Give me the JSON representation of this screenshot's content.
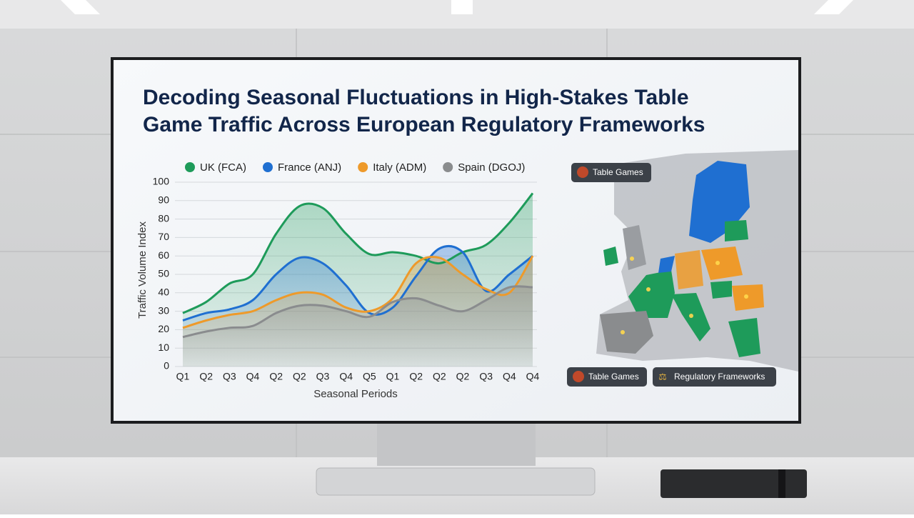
{
  "chart_data": {
    "type": "line",
    "title": "Decoding Seasonal Fluctuations in High-Stakes Table Game Traffic Across European Regulatory Frameworks",
    "x_label": "Seasonal Periods",
    "y_label": "Traffic Volume Index",
    "categories": [
      "Q1",
      "Q2",
      "Q3",
      "Q4",
      "Q2",
      "Q2",
      "Q3",
      "Q4",
      "Q5",
      "Q1",
      "Q2",
      "Q2",
      "Q2",
      "Q3",
      "Q4",
      "Q4"
    ],
    "series": [
      {
        "name": "UK (FCA)",
        "color": "#1e9b5a",
        "values": [
          29,
          35,
          45,
          50,
          72,
          87,
          86,
          72,
          61,
          62,
          60,
          56,
          62,
          66,
          78,
          94
        ]
      },
      {
        "name": "France (ANJ)",
        "color": "#1f6fd1",
        "values": [
          25,
          29,
          31,
          36,
          50,
          59,
          56,
          44,
          29,
          32,
          49,
          64,
          62,
          41,
          50,
          60
        ]
      },
      {
        "name": "Italy (ADM)",
        "color": "#ee9a2a",
        "values": [
          21,
          25,
          28,
          30,
          36,
          40,
          39,
          32,
          30,
          37,
          56,
          59,
          50,
          42,
          40,
          60
        ]
      },
      {
        "name": "Spain (DGOJ)",
        "color": "#8a8c8e",
        "values": [
          16,
          19,
          21,
          22,
          29,
          33,
          33,
          30,
          27,
          35,
          37,
          33,
          30,
          36,
          43,
          43
        ]
      }
    ],
    "ylim": [
      0,
      100
    ],
    "yticks": [
      0,
      10,
      20,
      30,
      40,
      50,
      60,
      70,
      80,
      90,
      100
    ],
    "grid": true,
    "legend": "top"
  },
  "map": {
    "badges": [
      "Table Games",
      "Table Games",
      "Regulatory Frameworks"
    ]
  }
}
